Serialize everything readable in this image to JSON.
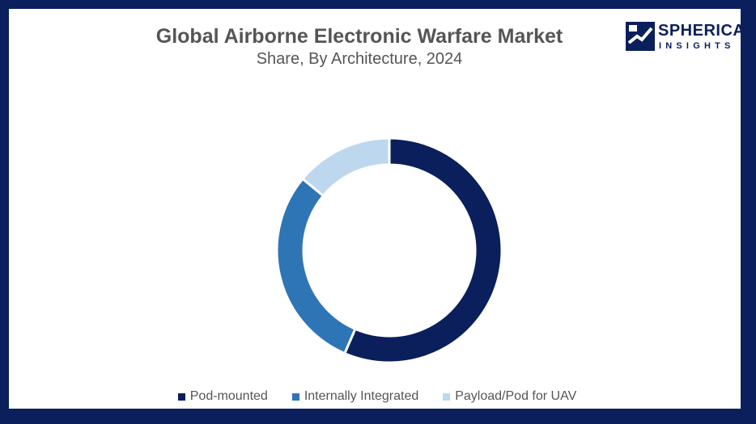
{
  "chart_data": {
    "type": "pie",
    "title": "Global Airborne Electronic Warfare Market",
    "subtitle": "Share, By Architecture, 2024",
    "categories": [
      "Pod-mounted",
      "Internally Integrated",
      "Payload/Pod for UAV"
    ],
    "values": [
      56.5,
      29.5,
      14.0
    ],
    "colors": [
      "#0b1f5c",
      "#2e75b6",
      "#bdd7ee"
    ],
    "donut": true,
    "legend": "bottom"
  },
  "branding": {
    "line1": "SPHERICAL",
    "line2": "INSIGHTS"
  }
}
